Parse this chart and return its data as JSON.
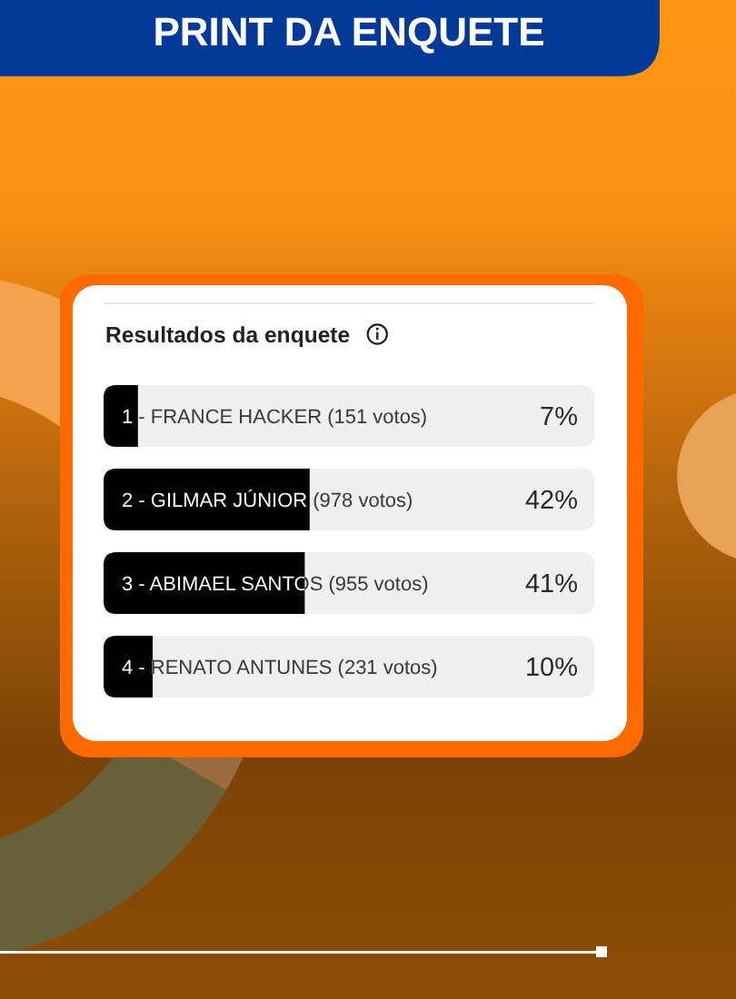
{
  "chart_data": {
    "type": "bar",
    "orientation": "horizontal",
    "title": "PRINT DA ENQUETE",
    "subtitle": "Resultados da enquete",
    "categories": [
      "1 - FRANCE HACKER (151 votos)",
      "2 - GILMAR JÚNIOR (978 votos)",
      "3 - ABIMAEL SANTOS (955 votos)",
      "4 - RENATO ANTUNES (231 votos)"
    ],
    "values": [
      7,
      42,
      41,
      10
    ],
    "value_labels": [
      "7%",
      "42%",
      "41%",
      "10%"
    ],
    "color": "#000000",
    "xlim": [
      0,
      100
    ],
    "tick_labels": "y"
  }
}
